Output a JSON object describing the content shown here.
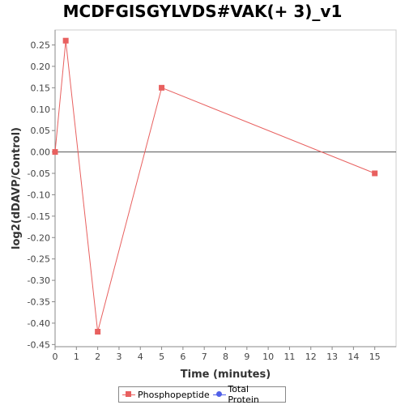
{
  "chart_data": {
    "type": "line",
    "title": "MCDFGISGYLVDS#VAK(+ 3)_v1",
    "xlabel": "Time (minutes)",
    "ylabel": "log2(dDAVP/Control)",
    "xlim": [
      0,
      16
    ],
    "ylim": [
      -0.455,
      0.285
    ],
    "x_ticks": [
      0,
      1,
      2,
      3,
      4,
      5,
      6,
      7,
      8,
      9,
      10,
      11,
      12,
      13,
      14,
      15
    ],
    "y_ticks": [
      0.25,
      0.2,
      0.15,
      0.1,
      0.05,
      0.0,
      -0.05,
      -0.1,
      -0.15,
      -0.2,
      -0.25,
      -0.3,
      -0.35,
      -0.4,
      -0.45
    ],
    "y_tick_labels": [
      "0.25",
      "0.20",
      "0.15",
      "0.10",
      "0.05",
      "0.00",
      "-0.05",
      "-0.10",
      "-0.15",
      "-0.20",
      "-0.25",
      "-0.30",
      "-0.35",
      "-0.40",
      "-0.45"
    ],
    "zero_line": true,
    "grid": false,
    "legend_position": "bottom",
    "series": [
      {
        "name": "Phosphopeptide",
        "color": "#e8605f",
        "marker": "square",
        "x": [
          0,
          0.5,
          2,
          5,
          15
        ],
        "y": [
          0.0,
          0.26,
          -0.42,
          0.15,
          -0.05
        ]
      },
      {
        "name": "Total Protein",
        "color": "#5060e8",
        "marker": "circle",
        "x": [],
        "y": []
      }
    ]
  }
}
